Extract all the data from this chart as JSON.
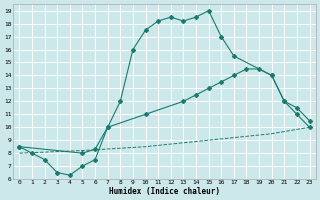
{
  "title": "",
  "xlabel": "Humidex (Indice chaleur)",
  "bg_color": "#cce8ea",
  "grid_color": "#ffffff",
  "line_color": "#1a7a6e",
  "xlim": [
    -0.5,
    23.5
  ],
  "ylim": [
    6,
    19.5
  ],
  "xticks": [
    0,
    1,
    2,
    3,
    4,
    5,
    6,
    7,
    8,
    9,
    10,
    11,
    12,
    13,
    14,
    15,
    16,
    17,
    18,
    19,
    20,
    21,
    22,
    23
  ],
  "yticks": [
    6,
    7,
    8,
    9,
    10,
    11,
    12,
    13,
    14,
    15,
    16,
    17,
    18,
    19
  ],
  "line1_x": [
    0,
    1,
    2,
    3,
    4,
    5,
    6,
    7,
    8,
    9,
    10,
    11,
    12,
    13,
    14,
    15,
    16,
    17,
    20,
    21,
    22,
    23
  ],
  "line1_y": [
    8.5,
    8.0,
    7.5,
    6.5,
    6.3,
    7.0,
    7.5,
    10.0,
    12.0,
    16.0,
    17.5,
    18.2,
    18.5,
    18.2,
    18.5,
    19.0,
    17.0,
    15.5,
    14.0,
    12.0,
    11.0,
    10.0
  ],
  "line2_x": [
    0,
    5,
    6,
    7,
    10,
    13,
    14,
    15,
    16,
    17,
    18,
    19,
    20,
    21,
    22,
    23
  ],
  "line2_y": [
    8.5,
    8.0,
    8.3,
    10.0,
    11.0,
    12.0,
    12.5,
    13.0,
    13.5,
    14.0,
    14.5,
    14.5,
    14.0,
    12.0,
    11.5,
    10.5
  ],
  "line3_x": [
    0,
    5,
    10,
    15,
    20,
    23
  ],
  "line3_y": [
    8.0,
    8.2,
    8.5,
    9.0,
    9.5,
    10.0
  ]
}
